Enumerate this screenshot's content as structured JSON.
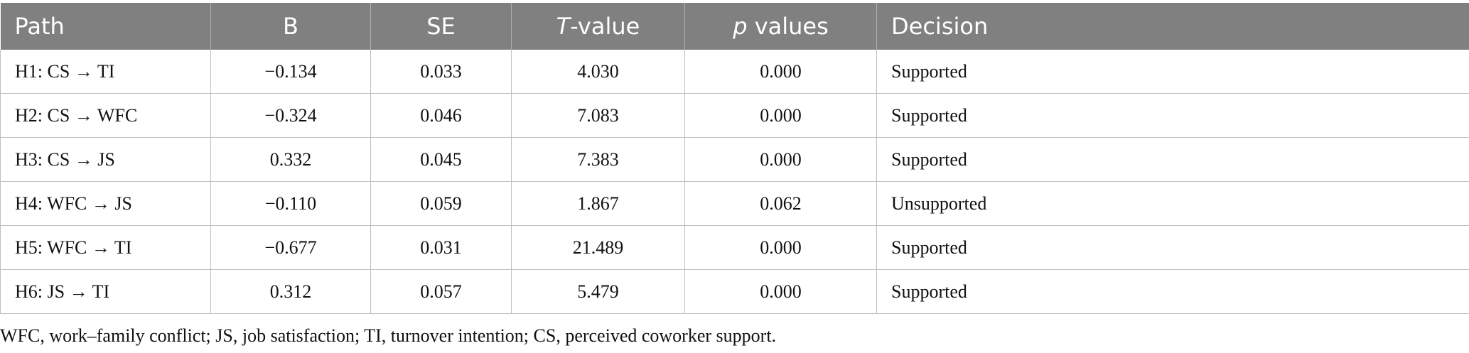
{
  "table": {
    "headers": [
      {
        "prefix": "",
        "italic": "",
        "suffix": "Path",
        "align": "left"
      },
      {
        "prefix": "",
        "italic": "",
        "suffix": "B",
        "align": "center"
      },
      {
        "prefix": "",
        "italic": "",
        "suffix": "SE",
        "align": "center"
      },
      {
        "prefix": "",
        "italic": "T",
        "suffix": "-value",
        "align": "center"
      },
      {
        "prefix": "",
        "italic": "p",
        "suffix": " values",
        "align": "center"
      },
      {
        "prefix": "",
        "italic": "",
        "suffix": "Decision",
        "align": "left"
      }
    ],
    "rows": [
      [
        "H1: CS → TI",
        "−0.134",
        "0.033",
        "4.030",
        "0.000",
        "Supported"
      ],
      [
        "H2: CS → WFC",
        "−0.324",
        "0.046",
        "7.083",
        "0.000",
        "Supported"
      ],
      [
        "H3: CS → JS",
        "0.332",
        "0.045",
        "7.383",
        "0.000",
        "Supported"
      ],
      [
        "H4: WFC → JS",
        "−0.110",
        "0.059",
        "1.867",
        "0.062",
        "Unsupported"
      ],
      [
        "H5: WFC → TI",
        "−0.677",
        "0.031",
        "21.489",
        "0.000",
        "Supported"
      ],
      [
        "H6: JS → TI",
        "0.312",
        "0.057",
        "5.479",
        "0.000",
        "Supported"
      ]
    ]
  },
  "footnote": "WFC, work–family conflict; JS, job satisfaction; TI, turnover intention; CS, perceived coworker support.",
  "colors": {
    "header_bg": "#808080",
    "header_text": "#ffffff",
    "grid": "#bfbfbf"
  }
}
